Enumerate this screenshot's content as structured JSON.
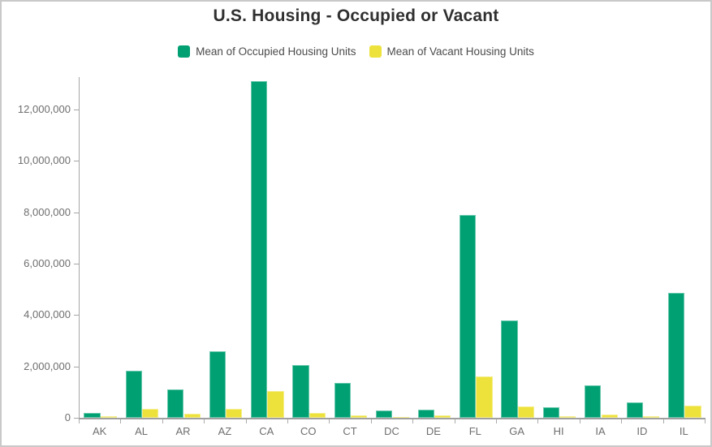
{
  "title": "U.S. Housing - Occupied or Vacant",
  "legend": {
    "items": [
      {
        "label": "Mean of Occupied Housing Units",
        "color": "#00A073"
      },
      {
        "label": "Mean of Vacant Housing Units",
        "color": "#EDE23B"
      }
    ]
  },
  "chart_data": {
    "type": "bar",
    "title": "U.S. Housing - Occupied or Vacant",
    "categories": [
      "AK",
      "AL",
      "AR",
      "AZ",
      "CA",
      "CO",
      "CT",
      "DC",
      "DE",
      "FL",
      "GA",
      "HI",
      "IA",
      "ID",
      "IL"
    ],
    "series": [
      {
        "name": "Mean of Occupied Housing Units",
        "color": "#00A073",
        "values": [
          200000,
          1830000,
          1100000,
          2600000,
          13100000,
          2050000,
          1350000,
          280000,
          330000,
          7900000,
          3800000,
          420000,
          1250000,
          600000,
          4850000
        ]
      },
      {
        "name": "Mean of Vacant Housing Units",
        "color": "#EDE23B",
        "values": [
          50000,
          340000,
          150000,
          350000,
          1050000,
          180000,
          80000,
          40000,
          110000,
          1600000,
          450000,
          60000,
          120000,
          60000,
          460000
        ]
      }
    ],
    "xlabel": "",
    "ylabel": "",
    "ylim": [
      0,
      13260000
    ],
    "y_ticks": [
      {
        "value": 0,
        "label": "0"
      },
      {
        "value": 2000000,
        "label": "2,000,000"
      },
      {
        "value": 4000000,
        "label": "4,000,000"
      },
      {
        "value": 6000000,
        "label": "6,000,000"
      },
      {
        "value": 8000000,
        "label": "8,000,000"
      },
      {
        "value": 10000000,
        "label": "10,000,000"
      },
      {
        "value": 12000000,
        "label": "12,000,000"
      }
    ],
    "grid": false,
    "legend_position": "top"
  }
}
